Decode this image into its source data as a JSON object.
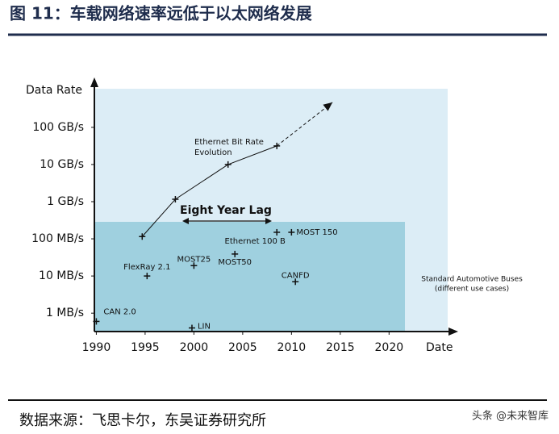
{
  "header": {
    "title": "图 11：车载网络速率远低于以太网络发展"
  },
  "chart_data": {
    "type": "scatter",
    "log_y": true,
    "y_label": "Data Rate",
    "x_label": "Date",
    "xlim": [
      1989.8,
      2027
    ],
    "xticks": [
      1990,
      1995,
      2000,
      2005,
      2010,
      2015,
      2020
    ],
    "ylim": [
      0.32,
      1800000
    ],
    "yticks": [
      {
        "value": 1,
        "label": "1 MB/s"
      },
      {
        "value": 10,
        "label": "10 MB/s"
      },
      {
        "value": 100,
        "label": "100 MB/s"
      },
      {
        "value": 1000,
        "label": "1 GB/s"
      },
      {
        "value": 10000,
        "label": "10 GB/s"
      },
      {
        "value": 100000,
        "label": "100 GB/s"
      }
    ],
    "points": [
      {
        "name": "CAN 2.0",
        "x": 1990,
        "y": 0.6
      },
      {
        "name": "FlexRay 2.1",
        "x": 1995.2,
        "y": 10
      },
      {
        "name": "MOST25",
        "x": 2000,
        "y": 19
      },
      {
        "name": "MOST50",
        "x": 2004.2,
        "y": 39
      },
      {
        "name": "Ethernet 100 B",
        "x": 2008.5,
        "y": 150
      },
      {
        "name": "MOST 150",
        "x": 2010,
        "y": 150
      },
      {
        "name": "CANFD",
        "x": 2010.4,
        "y": 7
      },
      {
        "name": "LIN",
        "x": 1999.8,
        "y": 0.4
      }
    ],
    "ethernet": {
      "label": [
        "Ethernet Bit Rate",
        "Evolution"
      ],
      "x": [
        1994.7,
        1998.1,
        2003.5,
        2008.5
      ],
      "y": [
        115,
        1160,
        10000,
        31600
      ],
      "projection_x": 2014.2,
      "projection_y": 470000
    },
    "annotations": [
      "Eight Year Lag",
      "Standard Automotive Buses",
      "(different use cases)"
    ]
  },
  "footer": {
    "source": "数据来源：飞思卡尔，东吴证券研究所",
    "watermark": "头条 @未来智库"
  }
}
